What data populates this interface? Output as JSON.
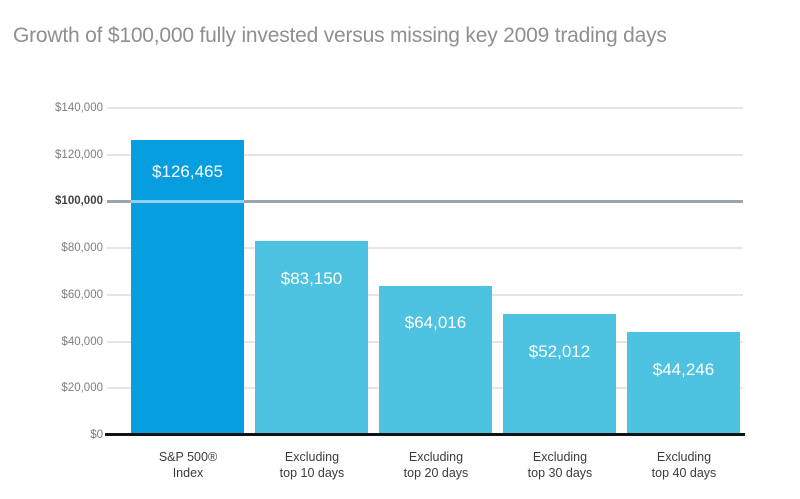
{
  "chart_data": {
    "type": "bar",
    "title": "Growth of $100,000 fully invested versus missing key 2009 trading days",
    "categories": [
      "S&P 500® Index",
      "Excluding top 10 days",
      "Excluding top 20 days",
      "Excluding top 30 days",
      "Excluding top 40 days"
    ],
    "category_lines": [
      [
        "S&P 500®",
        "Index"
      ],
      [
        "Excluding",
        "top 10 days"
      ],
      [
        "Excluding",
        "top 20 days"
      ],
      [
        "Excluding",
        "top 30 days"
      ],
      [
        "Excluding",
        "top 40 days"
      ]
    ],
    "values": [
      126465,
      83150,
      64016,
      52012,
      44246
    ],
    "value_labels": [
      "$126,465",
      "$83,150",
      "$64,016",
      "$52,012",
      "$44,246"
    ],
    "bar_colors": [
      "#079edf",
      "#4dc2e1",
      "#4dc2e1",
      "#4dc2e1",
      "#4dc2e1"
    ],
    "ylim": [
      0,
      140000
    ],
    "ytick_step": 20000,
    "grid": true,
    "highlight_gridline": 100000,
    "yticks": [
      {
        "value": 140000,
        "label": "$140,000",
        "emphasis": false
      },
      {
        "value": 120000,
        "label": "$120,000",
        "emphasis": false
      },
      {
        "value": 100000,
        "label": "$100,000",
        "emphasis": true
      },
      {
        "value": 80000,
        "label": "$80,000",
        "emphasis": false
      },
      {
        "value": 60000,
        "label": "$60,000",
        "emphasis": false
      },
      {
        "value": 40000,
        "label": "$40,000",
        "emphasis": false
      },
      {
        "value": 20000,
        "label": "$20,000",
        "emphasis": false
      },
      {
        "value": 0,
        "label": "$0",
        "emphasis": false
      }
    ],
    "colors": {
      "bar_primary": "#079edf",
      "bar_secondary": "#4dc2e1",
      "gridline": "#e3e5e8",
      "highlight_line": "#9ba4b1",
      "axis": "#121212",
      "title_text": "#8d8f90",
      "tick_text": "#7c7e80",
      "tick_text_emphasis": "#414446",
      "category_text": "#3a3c3e",
      "value_text": "#ffffff"
    }
  }
}
